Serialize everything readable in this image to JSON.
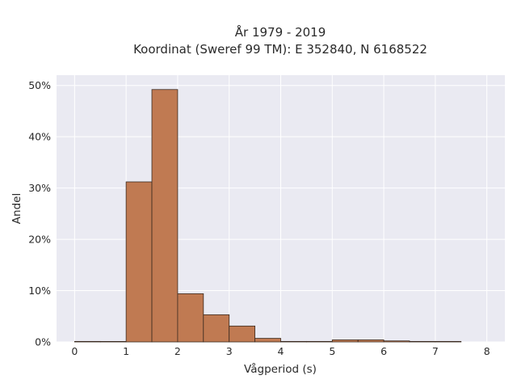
{
  "chart_data": {
    "type": "bar",
    "title": "År 1979 - 2019",
    "subtitle": "Koordinat (Sweref 99 TM): E 352840, N 6168522",
    "xlabel": "Vågperiod (s)",
    "ylabel": "Andel",
    "xlim": [
      -0.35,
      8.35
    ],
    "ylim": [
      0,
      52
    ],
    "xticks": [
      0,
      1,
      2,
      3,
      4,
      5,
      6,
      7,
      8
    ],
    "xtick_labels": [
      "0",
      "1",
      "2",
      "3",
      "4",
      "5",
      "6",
      "7",
      "8"
    ],
    "yticks": [
      0,
      10,
      20,
      30,
      40,
      50
    ],
    "ytick_labels": [
      "0%",
      "10%",
      "20%",
      "30%",
      "40%",
      "50%"
    ],
    "bin_width": 0.5,
    "bins": [
      {
        "start": 0.0,
        "value": 0.1
      },
      {
        "start": 0.5,
        "value": 0.0
      },
      {
        "start": 1.0,
        "value": 31.2
      },
      {
        "start": 1.5,
        "value": 49.2
      },
      {
        "start": 2.0,
        "value": 9.4
      },
      {
        "start": 2.5,
        "value": 5.3
      },
      {
        "start": 3.0,
        "value": 3.1
      },
      {
        "start": 3.5,
        "value": 0.7
      },
      {
        "start": 4.0,
        "value": 0.1
      },
      {
        "start": 4.5,
        "value": 0.1
      },
      {
        "start": 5.0,
        "value": 0.4
      },
      {
        "start": 5.5,
        "value": 0.4
      },
      {
        "start": 6.0,
        "value": 0.2
      },
      {
        "start": 6.5,
        "value": 0.1
      },
      {
        "start": 7.0,
        "value": 0.1
      }
    ],
    "grid": true,
    "colors": {
      "bar": "#c07a52",
      "bar_edge": "#3a2a20",
      "background": "#eaeaf2",
      "grid": "#ffffff"
    }
  }
}
